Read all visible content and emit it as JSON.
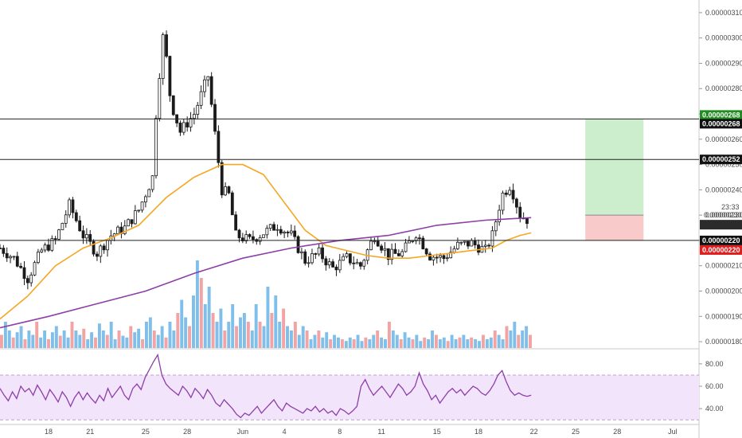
{
  "chart_data": {
    "type": "candlestick",
    "price_axis": {
      "ticks": [
        {
          "value": 3.1e-06,
          "label": "0.00000310"
        },
        {
          "value": 3e-06,
          "label": "0.00000300"
        },
        {
          "value": 2.9e-06,
          "label": "0.00000290"
        },
        {
          "value": 2.8e-06,
          "label": "0.00000280"
        },
        {
          "value": 2.7e-06,
          "label": "0.00000270"
        },
        {
          "value": 2.6e-06,
          "label": "0.00000260"
        },
        {
          "value": 2.5e-06,
          "label": "0.00000250"
        },
        {
          "value": 2.4e-06,
          "label": "0.00000240"
        },
        {
          "value": 2.3e-06,
          "label": "0.00000230"
        },
        {
          "value": 2.2e-06,
          "label": "0.00000220"
        },
        {
          "value": 2.1e-06,
          "label": "0.00000210"
        },
        {
          "value": 2e-06,
          "label": "0.00000200"
        },
        {
          "value": 1.9e-06,
          "label": "0.00000190"
        },
        {
          "value": 1.8e-06,
          "label": "0.00000180"
        }
      ],
      "range": [
        1.775e-06,
        3.15e-06
      ]
    },
    "x_axis": {
      "ticks": [
        {
          "day": 18,
          "label": "18"
        },
        {
          "day": 21,
          "label": "21"
        },
        {
          "day": 25,
          "label": "25"
        },
        {
          "day": 28,
          "label": "28"
        },
        {
          "day": 32,
          "label": "Jun"
        },
        {
          "day": 35,
          "label": "4"
        },
        {
          "day": 39,
          "label": "8"
        },
        {
          "day": 42,
          "label": "11"
        },
        {
          "day": 46,
          "label": "15"
        },
        {
          "day": 49,
          "label": "18"
        },
        {
          "day": 53,
          "label": "22"
        },
        {
          "day": 56,
          "label": "25"
        },
        {
          "day": 59,
          "label": "28"
        },
        {
          "day": 63,
          "label": "Jul"
        }
      ],
      "range": [
        14.5,
        64.9
      ]
    },
    "price_path": [
      [
        14.5,
        2.17e-06
      ],
      [
        15.5,
        2.13e-06
      ],
      [
        16.5,
        2.05e-06
      ],
      [
        17.5,
        2.16e-06
      ],
      [
        18.5,
        2.2e-06
      ],
      [
        19.5,
        2.34e-06
      ],
      [
        20.5,
        2.22e-06
      ],
      [
        21.5,
        2.15e-06
      ],
      [
        22.5,
        2.22e-06
      ],
      [
        23.5,
        2.25e-06
      ],
      [
        24.5,
        2.32e-06
      ],
      [
        25.5,
        2.45e-06
      ],
      [
        25.8,
        2.75e-06
      ],
      [
        26.3,
        3.03e-06
      ],
      [
        26.8,
        2.75e-06
      ],
      [
        27.5,
        2.63e-06
      ],
      [
        28.5,
        2.7e-06
      ],
      [
        29.5,
        2.85e-06
      ],
      [
        30.0,
        2.62e-06
      ],
      [
        30.5,
        2.4e-06
      ],
      [
        31.0,
        2.38e-06
      ],
      [
        31.5,
        2.22e-06
      ],
      [
        32.5,
        2.2e-06
      ],
      [
        33.5,
        2.23e-06
      ],
      [
        34.5,
        2.26e-06
      ],
      [
        35.5,
        2.22e-06
      ],
      [
        36.5,
        2.12e-06
      ],
      [
        37.5,
        2.15e-06
      ],
      [
        38.5,
        2.09e-06
      ],
      [
        39.5,
        2.13e-06
      ],
      [
        40.5,
        2.1e-06
      ],
      [
        41.5,
        2.22e-06
      ],
      [
        42.5,
        2.14e-06
      ],
      [
        43.5,
        2.15e-06
      ],
      [
        44.5,
        2.23e-06
      ],
      [
        45.5,
        2.14e-06
      ],
      [
        46.5,
        2.13e-06
      ],
      [
        47.5,
        2.18e-06
      ],
      [
        48.5,
        2.19e-06
      ],
      [
        49.5,
        2.16e-06
      ],
      [
        50.0,
        2.22e-06
      ],
      [
        50.7,
        2.38e-06
      ],
      [
        51.3,
        2.42e-06
      ],
      [
        52.0,
        2.3e-06
      ],
      [
        52.6,
        2.28e-06
      ]
    ],
    "moving_averages": [
      {
        "color": "#f5a623",
        "points": [
          [
            14.5,
            1.89e-06
          ],
          [
            16.5,
            1.98e-06
          ],
          [
            18.5,
            2.1e-06
          ],
          [
            20.5,
            2.17e-06
          ],
          [
            22.5,
            2.21e-06
          ],
          [
            24.5,
            2.26e-06
          ],
          [
            26.5,
            2.37e-06
          ],
          [
            28.5,
            2.45e-06
          ],
          [
            30.5,
            2.5e-06
          ],
          [
            32.0,
            2.5e-06
          ],
          [
            33.5,
            2.46e-06
          ],
          [
            35.0,
            2.35e-06
          ],
          [
            36.5,
            2.24e-06
          ],
          [
            38.0,
            2.18e-06
          ],
          [
            39.5,
            2.16e-06
          ],
          [
            41.0,
            2.14e-06
          ],
          [
            42.5,
            2.13e-06
          ],
          [
            44.0,
            2.13e-06
          ],
          [
            45.5,
            2.14e-06
          ],
          [
            47.0,
            2.15e-06
          ],
          [
            48.5,
            2.16e-06
          ],
          [
            50.0,
            2.17e-06
          ],
          [
            51.0,
            2.2e-06
          ],
          [
            52.0,
            2.22e-06
          ],
          [
            52.8,
            2.23e-06
          ]
        ]
      },
      {
        "color": "#8e3ea8",
        "points": [
          [
            14.5,
            1.855e-06
          ],
          [
            18.0,
            1.9e-06
          ],
          [
            21.5,
            1.95e-06
          ],
          [
            25.0,
            2e-06
          ],
          [
            28.5,
            2.07e-06
          ],
          [
            32.0,
            2.13e-06
          ],
          [
            35.5,
            2.17e-06
          ],
          [
            39.0,
            2.2e-06
          ],
          [
            42.5,
            2.22e-06
          ],
          [
            46.0,
            2.26e-06
          ],
          [
            49.5,
            2.28e-06
          ],
          [
            52.8,
            2.29e-06
          ]
        ]
      }
    ],
    "volume": {
      "max": 1.0,
      "values": [
        0.15,
        0.3,
        0.2,
        0.12,
        0.18,
        0.25,
        0.1,
        0.2,
        0.15,
        0.3,
        0.12,
        0.2,
        0.1,
        0.18,
        0.25,
        0.14,
        0.2,
        0.12,
        0.3,
        0.2,
        0.15,
        0.22,
        0.1,
        0.18,
        0.12,
        0.28,
        0.2,
        0.15,
        0.3,
        0.1,
        0.2,
        0.14,
        0.12,
        0.25,
        0.18,
        0.22,
        0.1,
        0.3,
        0.35,
        0.2,
        0.15,
        0.25,
        0.12,
        0.3,
        0.2,
        0.4,
        0.55,
        0.35,
        0.25,
        0.6,
        1.0,
        0.8,
        0.5,
        0.7,
        0.4,
        0.3,
        0.45,
        0.2,
        0.3,
        0.5,
        0.25,
        0.35,
        0.4,
        0.3,
        0.2,
        0.5,
        0.3,
        0.25,
        0.7,
        0.4,
        0.6,
        0.3,
        0.45,
        0.25,
        0.2,
        0.3,
        0.15,
        0.25,
        0.2,
        0.1,
        0.15,
        0.2,
        0.12,
        0.18,
        0.1,
        0.15,
        0.12,
        0.1,
        0.08,
        0.12,
        0.1,
        0.15,
        0.08,
        0.12,
        0.1,
        0.15,
        0.2,
        0.12,
        0.1,
        0.3,
        0.2,
        0.15,
        0.1,
        0.18,
        0.12,
        0.1,
        0.15,
        0.08,
        0.12,
        0.1,
        0.2,
        0.15,
        0.1,
        0.12,
        0.08,
        0.15,
        0.1,
        0.12,
        0.15,
        0.1,
        0.12,
        0.1,
        0.08,
        0.15,
        0.1,
        0.12,
        0.2,
        0.15,
        0.1,
        0.25,
        0.2,
        0.3,
        0.15,
        0.2,
        0.25,
        0.15
      ]
    },
    "rsi": {
      "ticks": [
        {
          "value": 80,
          "label": "80.00"
        },
        {
          "value": 60,
          "label": "60.00"
        },
        {
          "value": 40,
          "label": "40.00"
        }
      ],
      "range": [
        28,
        92
      ],
      "band": [
        30,
        70
      ],
      "color": "#8e3ea8",
      "values": [
        58,
        52,
        47,
        55,
        49,
        60,
        55,
        58,
        52,
        61,
        55,
        48,
        57,
        52,
        46,
        55,
        50,
        42,
        50,
        55,
        48,
        54,
        49,
        45,
        52,
        47,
        58,
        50,
        55,
        60,
        52,
        48,
        58,
        62,
        57,
        68,
        75,
        82,
        88,
        70,
        62,
        58,
        55,
        52,
        60,
        56,
        50,
        58,
        54,
        49,
        57,
        52,
        45,
        42,
        48,
        44,
        40,
        35,
        32,
        36,
        34,
        38,
        42,
        36,
        40,
        44,
        48,
        42,
        38,
        45,
        42,
        40,
        38,
        36,
        40,
        38,
        42,
        37,
        40,
        36,
        38,
        34,
        40,
        38,
        35,
        38,
        42,
        60,
        66,
        58,
        52,
        56,
        60,
        55,
        50,
        56,
        62,
        58,
        52,
        55,
        60,
        72,
        62,
        56,
        48,
        52,
        45,
        50,
        55,
        58,
        54,
        57,
        52,
        56,
        60,
        58,
        54,
        52,
        56,
        62,
        70,
        74,
        64,
        56,
        52,
        54,
        52,
        51,
        52
      ]
    },
    "horizontal_lines": [
      {
        "value": 2.68e-06
      },
      {
        "value": 2.52e-06
      },
      {
        "value": 2.2e-06
      }
    ],
    "position_tool": {
      "x_start_day": 56.7,
      "x_end_day": 60.9,
      "entry": 2.3e-06,
      "target": 2.68e-06,
      "stop": 2.2e-06
    },
    "price_tags": [
      {
        "value": 2.68e-06,
        "offset": -5,
        "label": "0.00000268",
        "color": "#1e8e1e"
      },
      {
        "value": 2.68e-06,
        "offset": 6,
        "label": "0.00000268",
        "color": "#111111"
      },
      {
        "value": 2.52e-06,
        "offset": 0,
        "label": "0.00000252",
        "color": "#111111"
      },
      {
        "value": 2.3e-06,
        "offset": 0,
        "label": "0.00000230",
        "color": "",
        "plain": true
      },
      {
        "value": 2.3e-06,
        "offset": 12,
        "label": "",
        "color": "#2b2b2b"
      },
      {
        "value": 2.2e-06,
        "offset": 0,
        "label": "0.00000220",
        "color": "#111111"
      },
      {
        "value": 2.2e-06,
        "offset": 12,
        "label": "0.00000220",
        "color": "#e01e1e"
      }
    ],
    "countdown": "23:33"
  }
}
